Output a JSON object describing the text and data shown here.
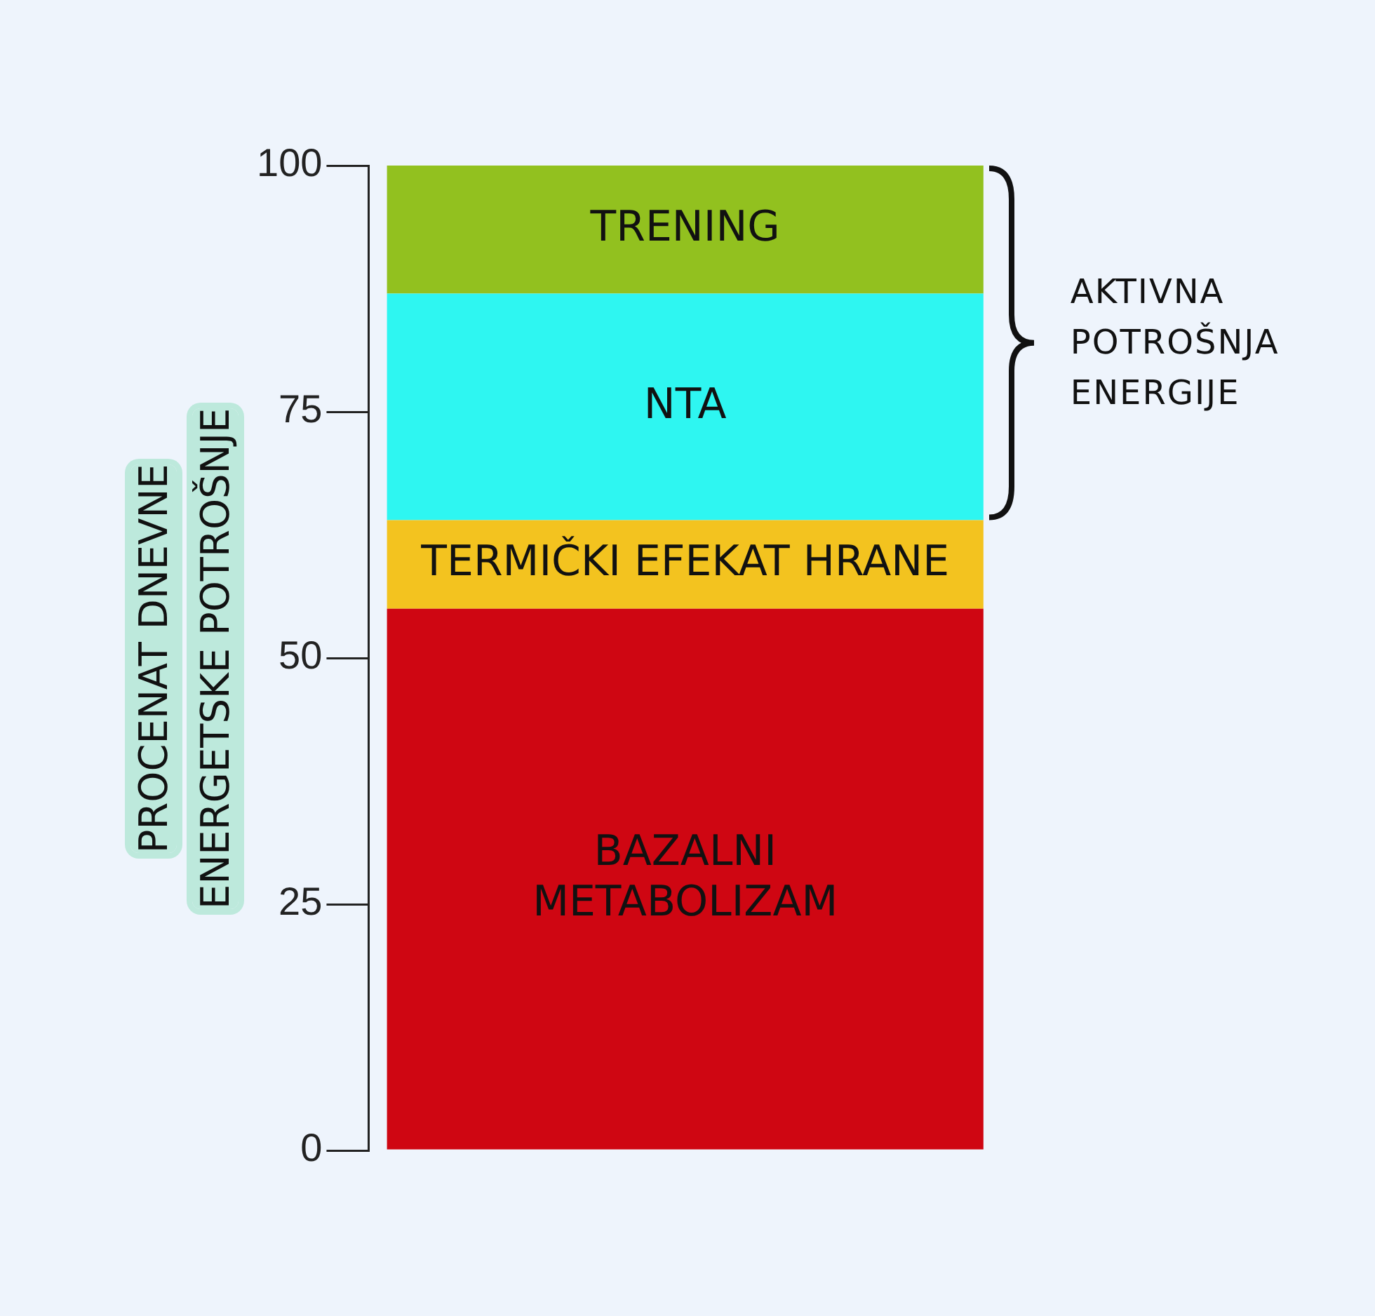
{
  "chart_data": {
    "type": "bar",
    "stacked": true,
    "ylabel": "PROCENAT DNEVNE\nENERGETSKE POTROŠNJE",
    "categories": [
      null
    ],
    "series": [
      {
        "name": "BAZALNI\nMETABOLIZAM",
        "color": "#cf0612",
        "values": [
          55
        ]
      },
      {
        "name": "TERMIČKI EFEKAT HRANE",
        "color": "#f3c31f",
        "values": [
          9
        ]
      },
      {
        "name": "NTA",
        "color": "#2ef6f1",
        "values": [
          23
        ]
      },
      {
        "name": "TRENING",
        "color": "#92c11f",
        "values": [
          13
        ]
      }
    ],
    "ylim": [
      0,
      100
    ],
    "yticks": [
      0,
      25,
      50,
      75,
      100
    ],
    "tick_labels": "y",
    "grid": false,
    "legend": false,
    "annotations": [
      "AKTIVNA\nPOTROŠNJA\nENERGIJE"
    ]
  }
}
